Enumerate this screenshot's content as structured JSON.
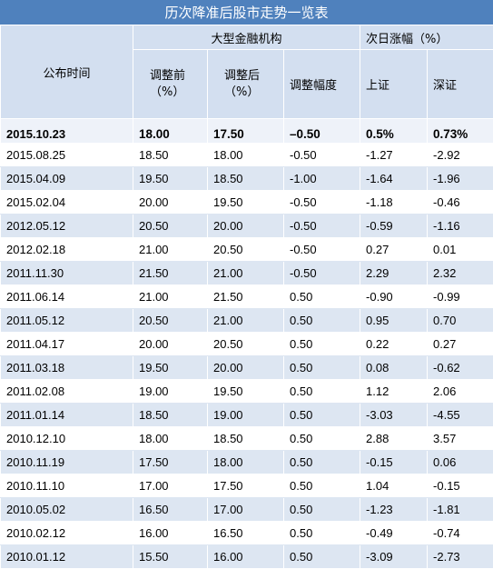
{
  "title": "历次降准后股市走势一览表",
  "headers": {
    "date": "公布时间",
    "group_big": "大型金融机构",
    "group_next": "次日涨幅（%）",
    "before_line1": "调整前",
    "before_line2": "（%）",
    "after_line1": "调整后",
    "after_line2": "（%）",
    "change": "调整幅度",
    "sh": "上证",
    "sz": "深证"
  },
  "rows": [
    [
      "2015.10.23",
      "18.00",
      "17.50",
      "–0.50",
      "0.5%",
      "0.73%"
    ],
    [
      "2015.08.25",
      "18.50",
      "18.00",
      "-0.50",
      "-1.27",
      "-2.92"
    ],
    [
      "2015.04.09",
      "19.50",
      "18.50",
      "-1.00",
      "-1.64",
      "-1.96"
    ],
    [
      "2015.02.04",
      "20.00",
      "19.50",
      "-0.50",
      "-1.18",
      "-0.46"
    ],
    [
      "2012.05.12",
      "20.50",
      "20.00",
      "-0.50",
      "-0.59",
      "-1.16"
    ],
    [
      "2012.02.18",
      "21.00",
      "20.50",
      "-0.50",
      "0.27",
      "0.01"
    ],
    [
      "2011.11.30",
      "21.50",
      "21.00",
      "-0.50",
      "2.29",
      "2.32"
    ],
    [
      "2011.06.14",
      "21.00",
      "21.50",
      "0.50",
      "-0.90",
      "-0.99"
    ],
    [
      "2011.05.12",
      "20.50",
      "21.00",
      "0.50",
      "0.95",
      "0.70"
    ],
    [
      "2011.04.17",
      "20.00",
      "20.50",
      "0.50",
      "0.22",
      "0.27"
    ],
    [
      "2011.03.18",
      "19.50",
      "20.00",
      "0.50",
      "0.08",
      "-0.62"
    ],
    [
      "2011.02.08",
      "19.00",
      "19.50",
      "0.50",
      "1.12",
      "2.06"
    ],
    [
      "2011.01.14",
      "18.50",
      "19.00",
      "0.50",
      "-3.03",
      "-4.55"
    ],
    [
      "2010.12.10",
      "18.00",
      "18.50",
      "0.50",
      "2.88",
      "3.57"
    ],
    [
      "2010.11.19",
      "17.50",
      "18.00",
      "0.50",
      "-0.15",
      "0.06"
    ],
    [
      "2010.11.10",
      "17.00",
      "17.50",
      "0.50",
      "1.04",
      "-0.15"
    ],
    [
      "2010.05.02",
      "16.50",
      "17.00",
      "0.50",
      "-1.23",
      "-1.81"
    ],
    [
      "2010.02.12",
      "16.00",
      "16.50",
      "0.50",
      "-0.49",
      "-0.74"
    ],
    [
      "2010.01.12",
      "15.50",
      "16.00",
      "0.50",
      "-3.09",
      "-2.73"
    ]
  ]
}
